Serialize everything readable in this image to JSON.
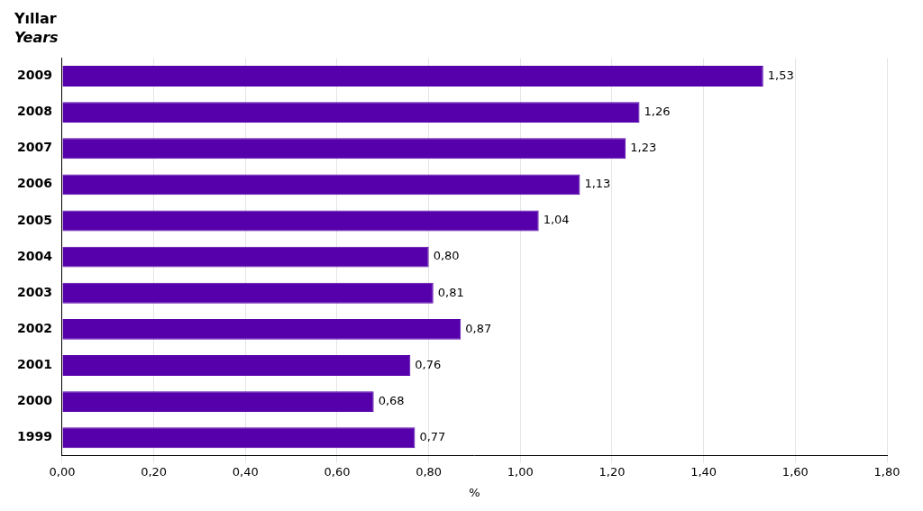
{
  "chart_data": {
    "type": "bar",
    "orientation": "horizontal",
    "title": "Yıllar",
    "subtitle": "Years",
    "xlabel": "%",
    "categories": [
      "2009",
      "2008",
      "2007",
      "2006",
      "2005",
      "2004",
      "2003",
      "2002",
      "2001",
      "2000",
      "1999"
    ],
    "values": [
      1.53,
      1.26,
      1.23,
      1.13,
      1.04,
      0.8,
      0.81,
      0.87,
      0.76,
      0.68,
      0.77
    ],
    "value_labels": [
      "1,53",
      "1,26",
      "1,23",
      "1,13",
      "1,04",
      "0,80",
      "0,81",
      "0,87",
      "0,76",
      "0,68",
      "0,77"
    ],
    "data_labels": true,
    "color": "#5500aa",
    "xlim": [
      0.0,
      1.8
    ],
    "xticks": [
      {
        "value": 0.0,
        "label": "0,00"
      },
      {
        "value": 0.2,
        "label": "0,20"
      },
      {
        "value": 0.4,
        "label": "0,40"
      },
      {
        "value": 0.6,
        "label": "0,60"
      },
      {
        "value": 0.8,
        "label": "0,80"
      },
      {
        "value": 1.0,
        "label": "1,00"
      },
      {
        "value": 1.2,
        "label": "1,20"
      },
      {
        "value": 1.4,
        "label": "1,40"
      },
      {
        "value": 1.6,
        "label": "1,60"
      },
      {
        "value": 1.8,
        "label": "1,80"
      }
    ],
    "grid": true
  }
}
